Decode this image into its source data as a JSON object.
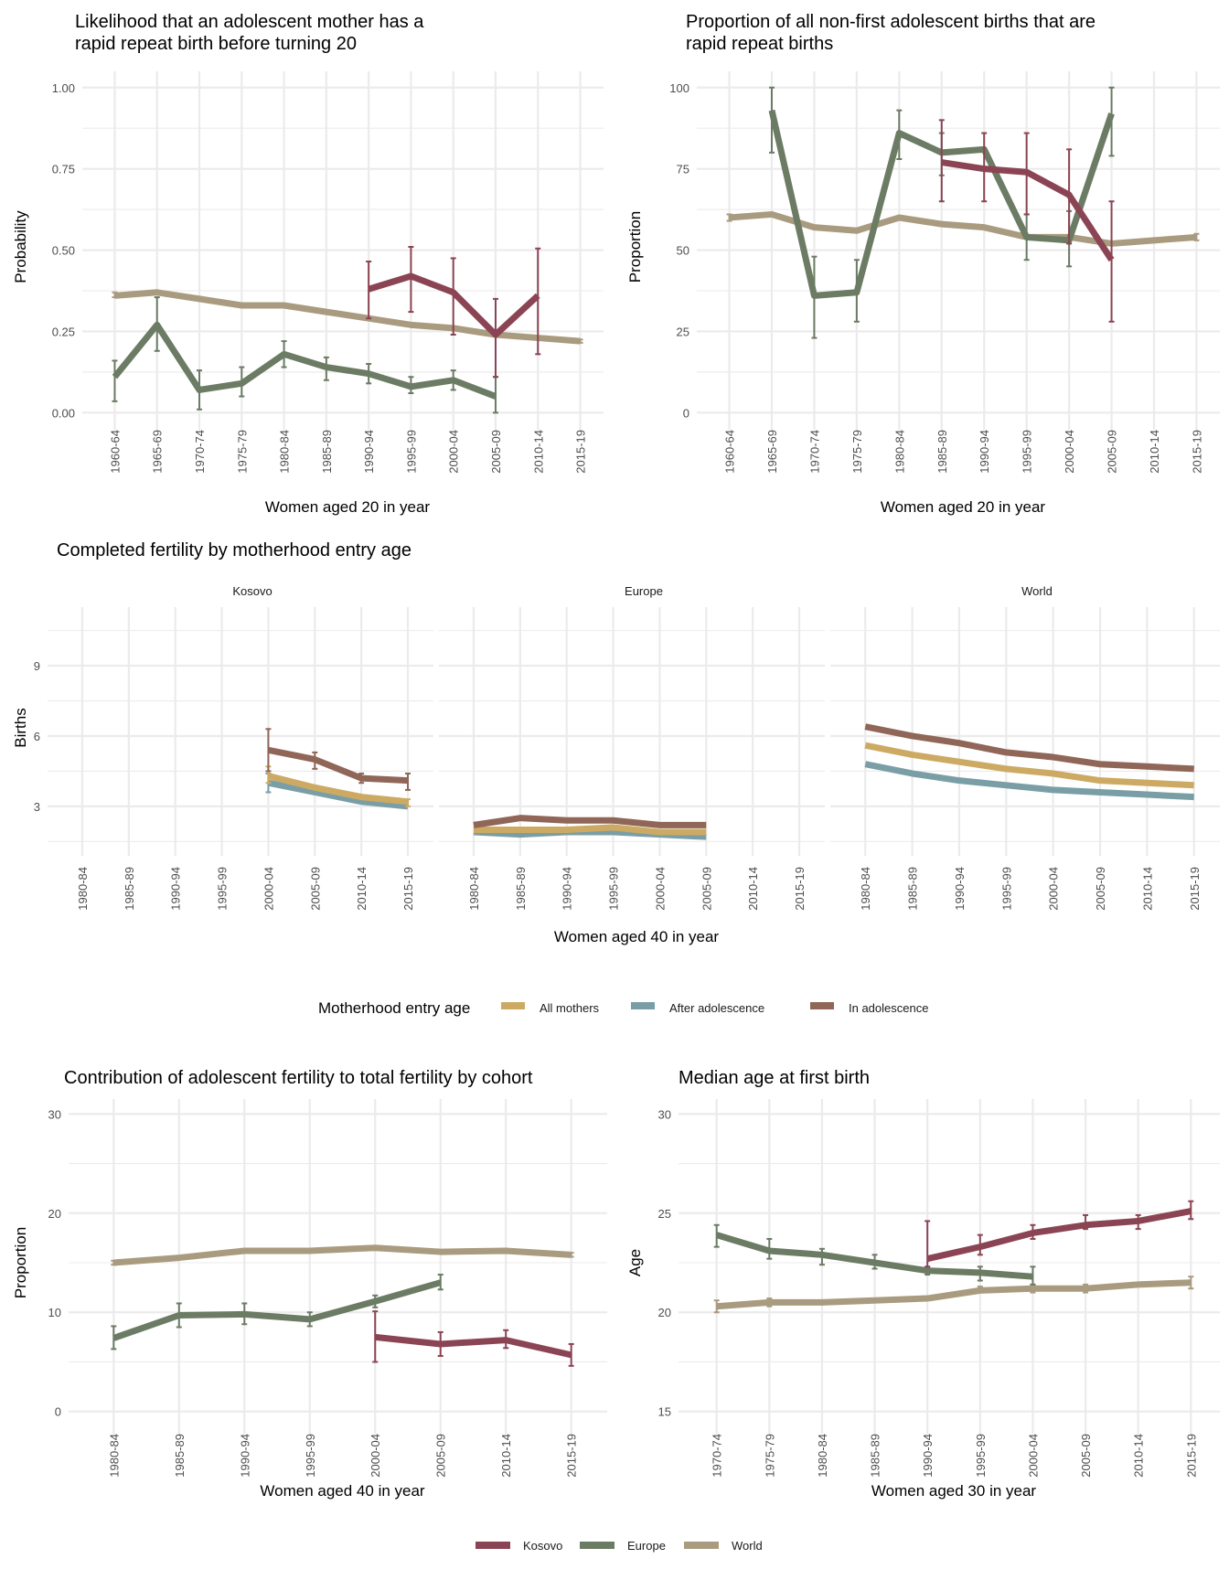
{
  "colors": {
    "Kosovo": "#8b4454",
    "Europe": "#6b7b64",
    "World": "#a99b7f",
    "All mothers": "#cdaa63",
    "After adolescence": "#7a9ea6",
    "In adolescence": "#8f6657"
  },
  "legend_bottom": {
    "items": [
      "Kosovo",
      "Europe",
      "World"
    ]
  },
  "legend_middle": {
    "title": "Motherhood entry age",
    "items": [
      "All mothers",
      "After adolescence",
      "In adolescence"
    ]
  },
  "chart_data": [
    {
      "id": "rapid-repeat-likelihood",
      "type": "line",
      "title": "Likelihood that an adolescent mother has a rapid repeat birth before turning 20",
      "title_lines": [
        "Likelihood that an adolescent mother has a",
        "rapid repeat birth before turning 20"
      ],
      "xlabel": "Women aged 20 in year",
      "ylabel": "Probability",
      "categories": [
        "1960-64",
        "1965-69",
        "1970-74",
        "1975-79",
        "1980-84",
        "1985-89",
        "1990-94",
        "1995-99",
        "2000-04",
        "2005-09",
        "2010-14",
        "2015-19"
      ],
      "ylim": [
        -0.03,
        1.05
      ],
      "yticks": [
        0.0,
        0.25,
        0.5,
        0.75,
        1.0
      ],
      "ytick_labels": [
        "0.00",
        "0.25",
        "0.50",
        "0.75",
        "1.00"
      ],
      "grid": true,
      "series": [
        {
          "name": "World",
          "values": [
            0.36,
            0.37,
            0.35,
            0.33,
            0.33,
            0.31,
            0.29,
            0.27,
            0.26,
            0.24,
            0.23,
            0.22
          ],
          "lower": [
            0.355,
            0.37,
            null,
            null,
            null,
            null,
            null,
            null,
            null,
            null,
            null,
            0.215
          ],
          "upper": [
            0.37,
            0.37,
            null,
            null,
            null,
            null,
            null,
            null,
            null,
            null,
            null,
            0.225
          ]
        },
        {
          "name": "Europe",
          "values": [
            0.11,
            0.27,
            0.07,
            0.09,
            0.18,
            0.14,
            0.12,
            0.08,
            0.1,
            0.05,
            null,
            null
          ],
          "lower": [
            0.035,
            0.19,
            0.01,
            0.05,
            0.14,
            0.1,
            0.09,
            0.06,
            0.07,
            0.0,
            null,
            null
          ],
          "upper": [
            0.16,
            0.355,
            0.13,
            0.14,
            0.22,
            0.17,
            0.15,
            0.11,
            0.13,
            0.11,
            null,
            null
          ]
        },
        {
          "name": "Kosovo",
          "values": [
            null,
            null,
            null,
            null,
            null,
            null,
            0.38,
            0.42,
            0.37,
            0.24,
            0.36,
            null
          ],
          "lower": [
            null,
            null,
            null,
            null,
            null,
            null,
            0.29,
            0.31,
            0.24,
            0.11,
            0.18,
            null
          ],
          "upper": [
            null,
            null,
            null,
            null,
            null,
            null,
            0.465,
            0.51,
            0.475,
            0.35,
            0.505,
            null
          ]
        }
      ]
    },
    {
      "id": "rapid-repeat-proportion",
      "type": "line",
      "title": "Proportion of all non-first adolescent births that are rapid repeat births",
      "title_lines": [
        "Proportion of all non-first adolescent births that are",
        "rapid repeat births"
      ],
      "xlabel": "Women aged 20 in year",
      "ylabel": "Proportion",
      "categories": [
        "1960-64",
        "1965-69",
        "1970-74",
        "1975-79",
        "1980-84",
        "1985-89",
        "1990-94",
        "1995-99",
        "2000-04",
        "2005-09",
        "2010-14",
        "2015-19"
      ],
      "ylim": [
        -3,
        105
      ],
      "yticks": [
        0,
        25,
        50,
        75,
        100
      ],
      "ytick_labels": [
        "0",
        "25",
        "50",
        "75",
        "100"
      ],
      "grid": true,
      "series": [
        {
          "name": "World",
          "values": [
            60,
            61,
            57,
            56,
            60,
            58,
            57,
            54,
            54,
            52,
            53,
            54
          ],
          "lower": [
            59,
            null,
            null,
            null,
            null,
            null,
            null,
            null,
            null,
            null,
            null,
            53
          ],
          "upper": [
            61,
            null,
            null,
            null,
            null,
            null,
            null,
            null,
            null,
            null,
            null,
            55
          ]
        },
        {
          "name": "Europe",
          "values": [
            null,
            93,
            36,
            37,
            86,
            80,
            81,
            54,
            53,
            92,
            null,
            null
          ],
          "lower": [
            null,
            80,
            23,
            28,
            78,
            73,
            null,
            47,
            45,
            79,
            null,
            null
          ],
          "upper": [
            null,
            100,
            48,
            47,
            93,
            86,
            87,
            61,
            62,
            100,
            null,
            null
          ]
        },
        {
          "name": "Kosovo",
          "values": [
            null,
            null,
            null,
            null,
            null,
            77,
            75,
            74,
            67,
            47,
            null,
            null
          ],
          "lower": [
            null,
            null,
            null,
            null,
            null,
            65,
            65,
            61,
            52,
            28,
            null,
            null
          ],
          "upper": [
            null,
            null,
            null,
            null,
            null,
            90,
            86,
            86,
            81,
            65,
            null,
            null
          ]
        }
      ]
    },
    {
      "id": "completed-fertility",
      "type": "line",
      "title": "Completed fertility by motherhood entry age",
      "xlabel": "Women aged 40 in year",
      "ylabel": "Births",
      "categories": [
        "1980-84",
        "1985-89",
        "1990-94",
        "1995-99",
        "2000-04",
        "2005-09",
        "2010-14",
        "2015-19"
      ],
      "ylim": [
        1.2,
        11.5
      ],
      "yticks": [
        3,
        6,
        9
      ],
      "ytick_labels": [
        "3",
        "6",
        "9"
      ],
      "grid": true,
      "legend": "bottom",
      "facets": [
        {
          "name": "Kosovo",
          "series": [
            {
              "name": "In adolescence",
              "values": [
                null,
                null,
                null,
                null,
                5.4,
                5.0,
                4.2,
                4.1
              ],
              "lower": [
                null,
                null,
                null,
                null,
                4.5,
                4.6,
                4.0,
                3.7
              ],
              "upper": [
                null,
                null,
                null,
                null,
                6.3,
                5.3,
                4.4,
                4.4
              ]
            },
            {
              "name": "All mothers",
              "values": [
                null,
                null,
                null,
                null,
                4.3,
                3.8,
                3.4,
                3.2
              ],
              "lower": [
                null,
                null,
                null,
                null,
                4.0,
                null,
                null,
                3.0
              ],
              "upper": [
                null,
                null,
                null,
                null,
                4.7,
                null,
                null,
                3.3
              ]
            },
            {
              "name": "After adolescence",
              "values": [
                null,
                null,
                null,
                null,
                4.0,
                3.6,
                3.2,
                3.0
              ],
              "lower": [
                null,
                null,
                null,
                null,
                3.6,
                null,
                null,
                null
              ],
              "upper": [
                null,
                null,
                null,
                null,
                4.4,
                null,
                null,
                null
              ]
            }
          ]
        },
        {
          "name": "Europe",
          "series": [
            {
              "name": "In adolescence",
              "values": [
                2.2,
                2.5,
                2.4,
                2.4,
                2.2,
                2.2,
                null,
                null
              ]
            },
            {
              "name": "All mothers",
              "values": [
                2.0,
                2.0,
                2.0,
                2.1,
                1.9,
                1.9,
                null,
                null
              ]
            },
            {
              "name": "After adolescence",
              "values": [
                1.9,
                1.8,
                1.9,
                1.9,
                1.8,
                1.7,
                null,
                null
              ]
            }
          ]
        },
        {
          "name": "World",
          "series": [
            {
              "name": "In adolescence",
              "values": [
                6.4,
                6.0,
                5.7,
                5.3,
                5.1,
                4.8,
                4.7,
                4.6
              ]
            },
            {
              "name": "All mothers",
              "values": [
                5.6,
                5.2,
                4.9,
                4.6,
                4.4,
                4.1,
                4.0,
                3.9
              ]
            },
            {
              "name": "After adolescence",
              "values": [
                4.8,
                4.4,
                4.1,
                3.9,
                3.7,
                3.6,
                3.5,
                3.4
              ]
            }
          ]
        }
      ]
    },
    {
      "id": "adolescent-contribution",
      "type": "line",
      "title": "Contribution of adolescent fertility to total fertility by cohort",
      "xlabel": "Women aged 40 in year",
      "ylabel": "Proportion",
      "categories": [
        "1980-84",
        "1985-89",
        "1990-94",
        "1995-99",
        "2000-04",
        "2005-09",
        "2010-14",
        "2015-19"
      ],
      "ylim": [
        -1.5,
        31.5
      ],
      "yticks": [
        0,
        10,
        20,
        30
      ],
      "ytick_labels": [
        "0",
        "10",
        "20",
        "30"
      ],
      "grid": true,
      "series": [
        {
          "name": "World",
          "values": [
            15.0,
            15.5,
            16.2,
            16.2,
            16.5,
            16.1,
            16.2,
            15.8
          ],
          "lower": [
            14.8,
            null,
            null,
            null,
            null,
            null,
            null,
            15.6
          ],
          "upper": [
            15.2,
            null,
            null,
            null,
            null,
            null,
            null,
            16.0
          ]
        },
        {
          "name": "Europe",
          "values": [
            7.4,
            9.7,
            9.8,
            9.3,
            11.1,
            13.0,
            null,
            null
          ],
          "lower": [
            6.3,
            8.5,
            8.8,
            8.6,
            10.5,
            12.3,
            null,
            null
          ],
          "upper": [
            8.6,
            10.9,
            10.9,
            10.0,
            11.7,
            13.8,
            null,
            null
          ]
        },
        {
          "name": "Kosovo",
          "values": [
            null,
            null,
            null,
            null,
            7.5,
            6.8,
            7.2,
            5.7
          ],
          "lower": [
            null,
            null,
            null,
            null,
            5.0,
            5.6,
            6.4,
            4.6
          ],
          "upper": [
            null,
            null,
            null,
            null,
            10.1,
            8.0,
            8.2,
            6.8
          ]
        }
      ]
    },
    {
      "id": "median-age-first-birth",
      "type": "line",
      "title": "Median age at first birth",
      "xlabel": "Women aged 30 in year",
      "ylabel": "Age",
      "categories": [
        "1970-74",
        "1975-79",
        "1980-84",
        "1985-89",
        "1990-94",
        "1995-99",
        "2000-04",
        "2005-09",
        "2010-14",
        "2015-19"
      ],
      "ylim": [
        14.25,
        30.75
      ],
      "yticks": [
        15,
        20,
        25,
        30
      ],
      "ytick_labels": [
        "15",
        "20",
        "25",
        "30"
      ],
      "grid": true,
      "series": [
        {
          "name": "World",
          "values": [
            20.3,
            20.5,
            20.5,
            20.6,
            20.7,
            21.1,
            21.2,
            21.2,
            21.4,
            21.5
          ],
          "lower": [
            20.0,
            20.3,
            20.4,
            20.5,
            null,
            21.0,
            21.0,
            21.0,
            21.3,
            21.2
          ],
          "upper": [
            20.6,
            20.7,
            20.6,
            20.7,
            null,
            21.3,
            21.4,
            21.4,
            21.5,
            21.8
          ]
        },
        {
          "name": "Europe",
          "values": [
            23.9,
            23.1,
            22.9,
            22.5,
            22.1,
            22.0,
            21.8,
            null,
            null,
            null
          ],
          "lower": [
            23.3,
            22.7,
            22.4,
            22.2,
            21.9,
            21.6,
            21.4,
            null,
            null,
            null
          ],
          "upper": [
            24.4,
            23.7,
            23.2,
            22.9,
            22.3,
            22.3,
            22.3,
            null,
            null,
            null
          ]
        },
        {
          "name": "Kosovo",
          "values": [
            null,
            null,
            null,
            null,
            22.7,
            23.3,
            24.0,
            24.4,
            24.6,
            25.1
          ],
          "lower": [
            null,
            null,
            null,
            null,
            22.3,
            22.9,
            23.7,
            24.2,
            24.2,
            24.7
          ],
          "upper": [
            null,
            null,
            null,
            null,
            24.6,
            23.9,
            24.4,
            24.9,
            24.9,
            25.6
          ]
        }
      ]
    }
  ]
}
